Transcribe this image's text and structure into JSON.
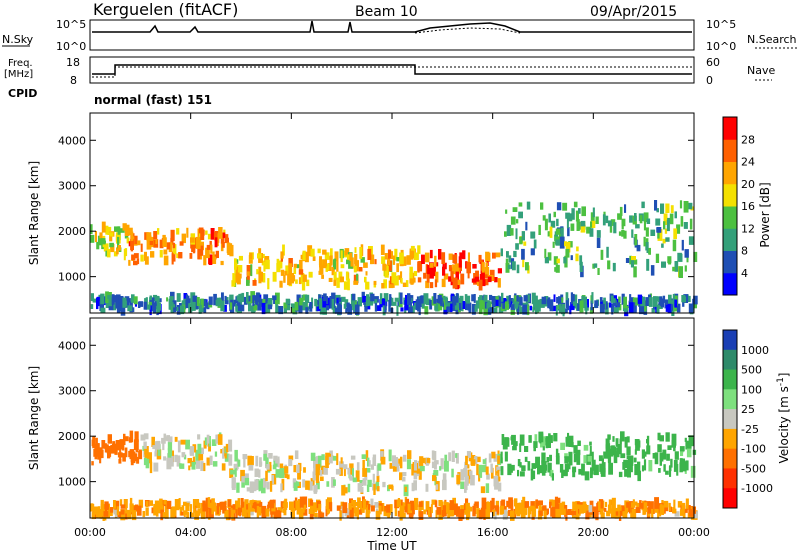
{
  "header": {
    "site": "Kerguelen (fitACF)",
    "beam": "Beam 10",
    "date": "09/Apr/2015"
  },
  "noise_panel": {
    "left_label": "N.Sky",
    "left_ticks": [
      "10^5",
      "10^0"
    ],
    "right_ticks": [
      "10^5",
      "10^0"
    ],
    "right_label": "N.Search"
  },
  "freq_panel": {
    "left_label_1": "Freq.",
    "left_label_2": "[MHz]",
    "left_ticks": [
      "18",
      "8"
    ],
    "right_ticks": [
      "60",
      "0"
    ],
    "right_label": "Nave",
    "cpid_label": "CPID",
    "mode_text": "normal (fast) 151"
  },
  "chart_data": [
    {
      "type": "heatmap",
      "name": "power",
      "ylabel": "Slant Range [km]",
      "xlabel": "",
      "y_ticks": [
        "1000",
        "2000",
        "3000",
        "4000"
      ],
      "ylim": [
        200,
        4600
      ],
      "colorbar_label": "Power [dB]",
      "colorbar_ticks": [
        "4",
        "8",
        "12",
        "16",
        "20",
        "24",
        "28"
      ],
      "colorbar_colors": [
        "#0000ff",
        "#1f4fb4",
        "#33a07a",
        "#4cc040",
        "#f4e000",
        "#ffa500",
        "#ff6000",
        "#ff0000"
      ],
      "scatter_bands": [
        {
          "t0": 0.0,
          "t1": 1.5,
          "r0": 1400,
          "r1": 2100,
          "level": 18
        },
        {
          "t0": 1.5,
          "t1": 5.5,
          "r0": 1300,
          "r1": 2000,
          "level": 24
        },
        {
          "t0": 5.5,
          "t1": 13.0,
          "r0": 800,
          "r1": 1600,
          "level": 20
        },
        {
          "t0": 13.0,
          "t1": 16.3,
          "r0": 800,
          "r1": 1500,
          "level": 26
        },
        {
          "t0": 16.3,
          "t1": 24.0,
          "r0": 1100,
          "r1": 2600,
          "level": 12
        },
        {
          "t0": 0.0,
          "t1": 24.0,
          "r0": 250,
          "r1": 550,
          "level": 8
        }
      ]
    },
    {
      "type": "heatmap",
      "name": "velocity",
      "ylabel": "Slant Range [km]",
      "xlabel": "Time UT",
      "x_ticks": [
        "00:00",
        "04:00",
        "08:00",
        "12:00",
        "16:00",
        "20:00",
        "00:00"
      ],
      "xlim": [
        0,
        24
      ],
      "y_ticks": [
        "1000",
        "2000",
        "3000",
        "4000"
      ],
      "ylim": [
        200,
        4600
      ],
      "colorbar_label": "Velocity [m s^-1]",
      "colorbar_ticks": [
        "1000",
        "500",
        "100",
        "25",
        "-25",
        "-100",
        "-500",
        "-1000"
      ],
      "colorbar_colors": [
        "#1a3fb4",
        "#2e8a6a",
        "#3cb44b",
        "#7ee07e",
        "#c8c8c0",
        "#ffa500",
        "#ff7000",
        "#ff3000",
        "#ff0000"
      ],
      "scatter_bands": [
        {
          "t0": 0.0,
          "t1": 2.0,
          "r0": 1400,
          "r1": 2100,
          "level": -300
        },
        {
          "t0": 2.0,
          "t1": 5.5,
          "r0": 1300,
          "r1": 2000,
          "level": 0
        },
        {
          "t0": 5.5,
          "t1": 16.3,
          "r0": 800,
          "r1": 1600,
          "level": 0
        },
        {
          "t0": 16.3,
          "t1": 24.0,
          "r0": 1100,
          "r1": 2000,
          "level": 150
        },
        {
          "t0": 0.0,
          "t1": 24.0,
          "r0": 250,
          "r1": 550,
          "level": -80
        }
      ]
    }
  ]
}
